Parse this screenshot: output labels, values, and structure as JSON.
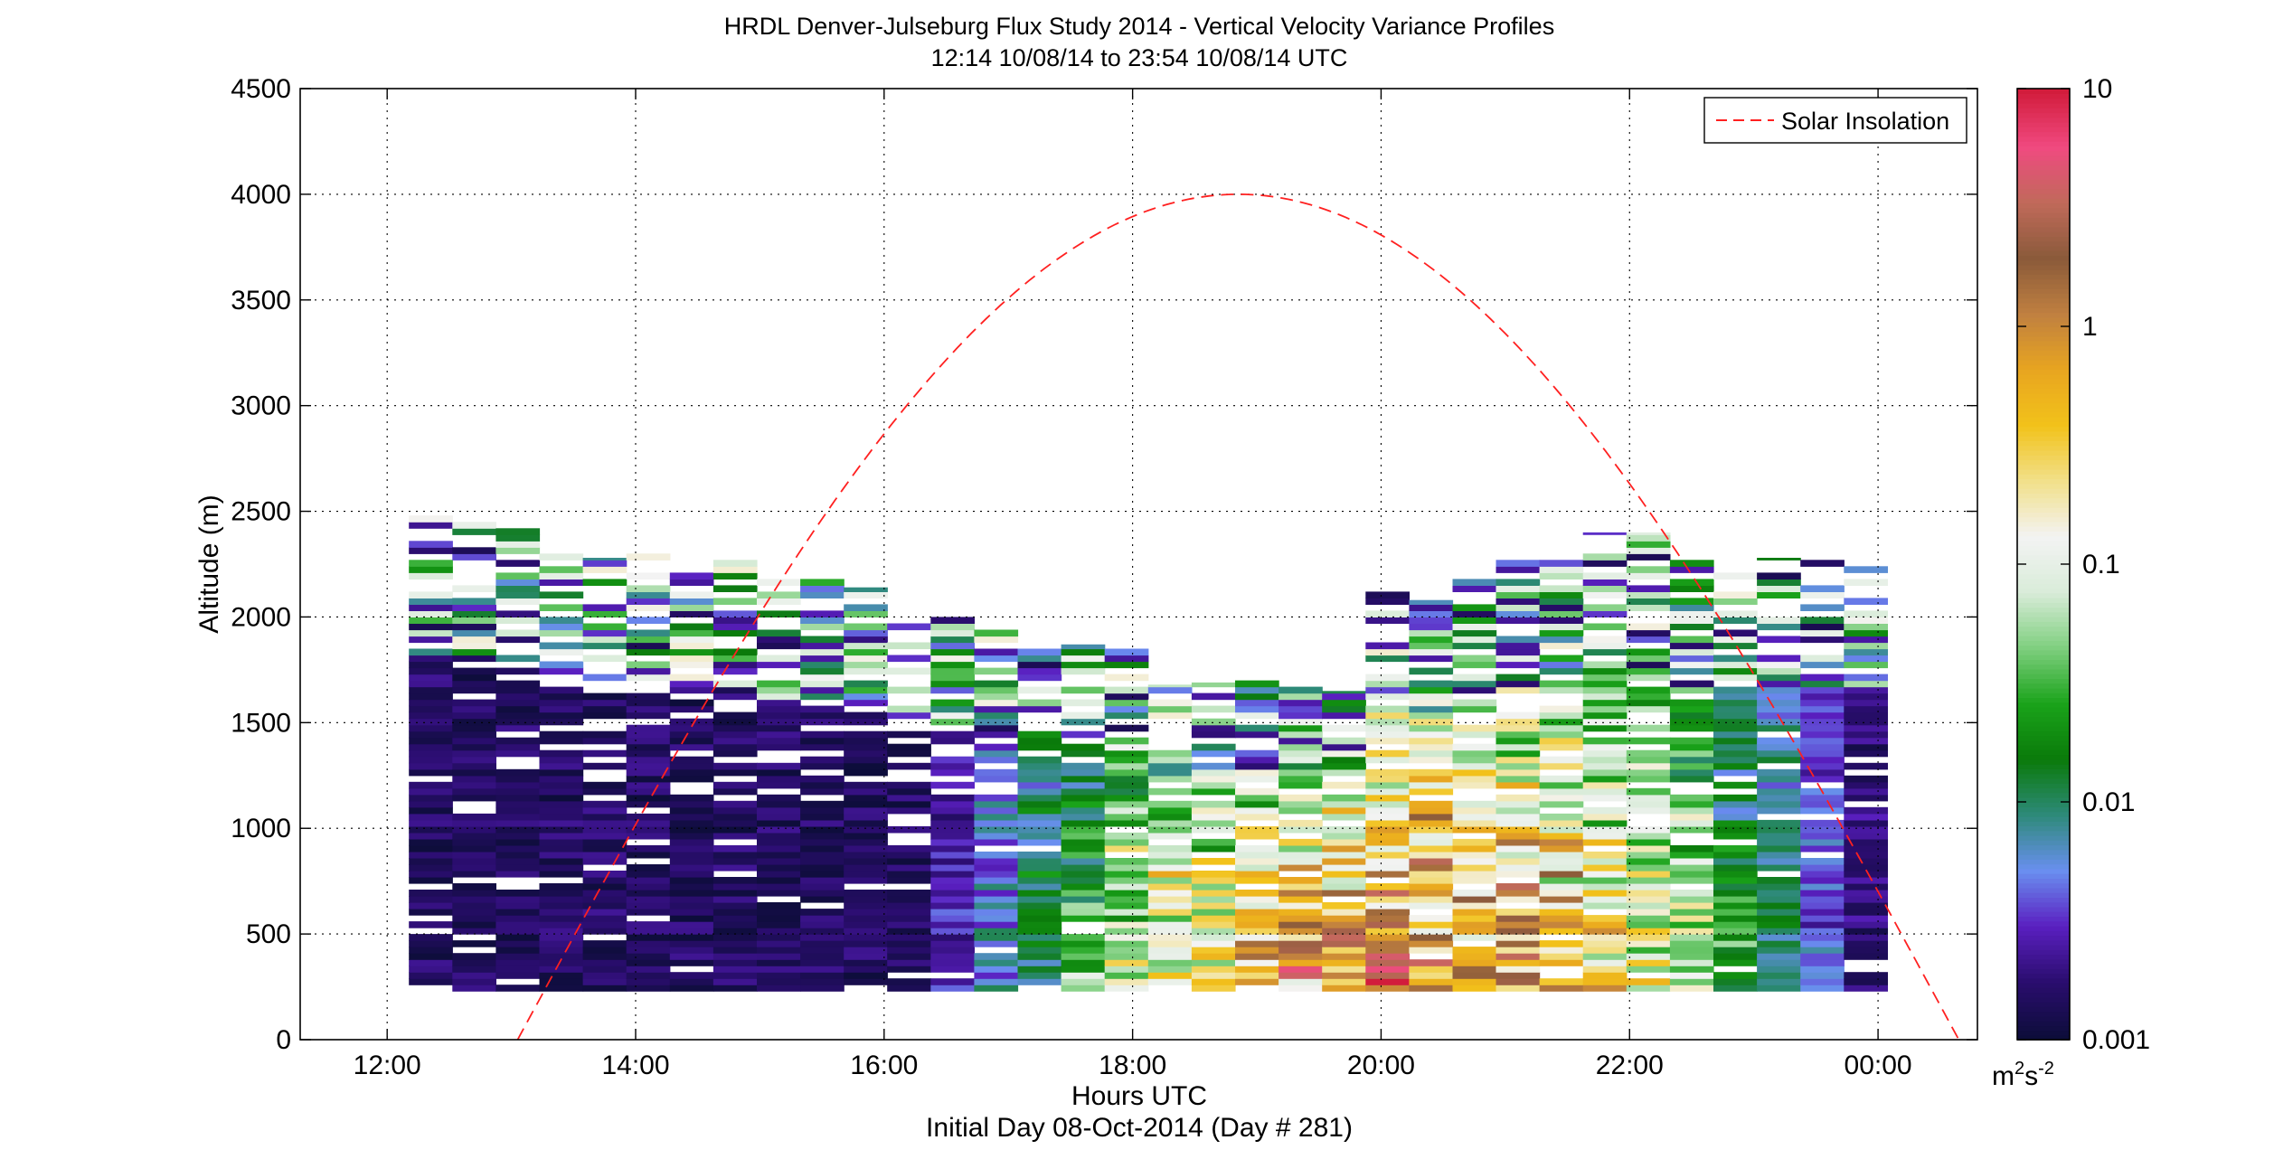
{
  "chart_data": {
    "type": "heatmap",
    "title": "HRDL Denver-Julseburg Flux Study 2014 - Vertical Velocity Variance Profiles",
    "subtitle": "12:14 10/08/14 to 23:54 10/08/14  UTC",
    "xlabel": "Hours UTC",
    "xlabel2": "Initial Day 08-Oct-2014 (Day # 281)",
    "ylabel": "Altitude (m)",
    "xlim": [
      11.3,
      24.8
    ],
    "ylim": [
      0,
      4500
    ],
    "x_ticks": [
      12,
      14,
      16,
      18,
      20,
      22,
      24
    ],
    "x_tick_labels": [
      "12:00",
      "14:00",
      "16:00",
      "18:00",
      "20:00",
      "22:00",
      "00:00"
    ],
    "y_ticks": [
      0,
      500,
      1000,
      1500,
      2000,
      2500,
      3000,
      3500,
      4000,
      4500
    ],
    "y_tick_labels": [
      "0",
      "500",
      "1000",
      "1500",
      "2000",
      "2500",
      "3000",
      "3500",
      "4000",
      "4500"
    ],
    "grid": true,
    "legend": {
      "placement": "top-right",
      "entries": [
        "Solar Insolation"
      ]
    },
    "colorbar": {
      "scale": "log",
      "range": [
        0.001,
        10
      ],
      "ticks": [
        0.001,
        0.01,
        0.1,
        1,
        10
      ],
      "tick_labels": [
        "0.001",
        "0.01",
        "0.1",
        "1",
        "10"
      ],
      "unit_base": "m",
      "unit_exp1": "2",
      "unit_mid": "s",
      "unit_exp2": "-2",
      "colors": [
        "#0d0d3a",
        "#2a0d6e",
        "#5a1fc0",
        "#6a8ff0",
        "#2e8a7a",
        "#0a7a0a",
        "#1aa31a",
        "#7fcf7f",
        "#d9ecd9",
        "#f3f3f3",
        "#f2e08a",
        "#f2c21a",
        "#e8a520",
        "#c08040",
        "#8a5a3a",
        "#c06a5a",
        "#f04a80",
        "#d21c3c"
      ]
    },
    "profile_times_hours": [
      12.35,
      12.7,
      13.05,
      13.4,
      13.75,
      14.1,
      14.45,
      14.8,
      15.15,
      15.5,
      15.85,
      16.2,
      16.55,
      16.9,
      17.25,
      17.6,
      17.95,
      18.3,
      18.65,
      19.0,
      19.35,
      19.7,
      20.05,
      20.4,
      20.75,
      21.1,
      21.45,
      21.8,
      22.15,
      22.5,
      22.85,
      23.2,
      23.55,
      23.9
    ],
    "profile_tops_m": [
      2500,
      2450,
      2420,
      2330,
      2280,
      2300,
      2250,
      2270,
      2180,
      2180,
      2140,
      2000,
      2000,
      1950,
      1930,
      1870,
      1850,
      1680,
      1690,
      1700,
      1700,
      1650,
      2120,
      2080,
      2200,
      2280,
      2300,
      2400,
      2400,
      2270,
      2250,
      2280,
      2270,
      2240
    ],
    "profile_bottom_m": 230,
    "solar_insolation": {
      "name": "Solar Insolation",
      "peak_time_hours": 18.85,
      "peak_altitude_m": 4000,
      "zero_times_hours": [
        13.05,
        24.65
      ]
    }
  }
}
